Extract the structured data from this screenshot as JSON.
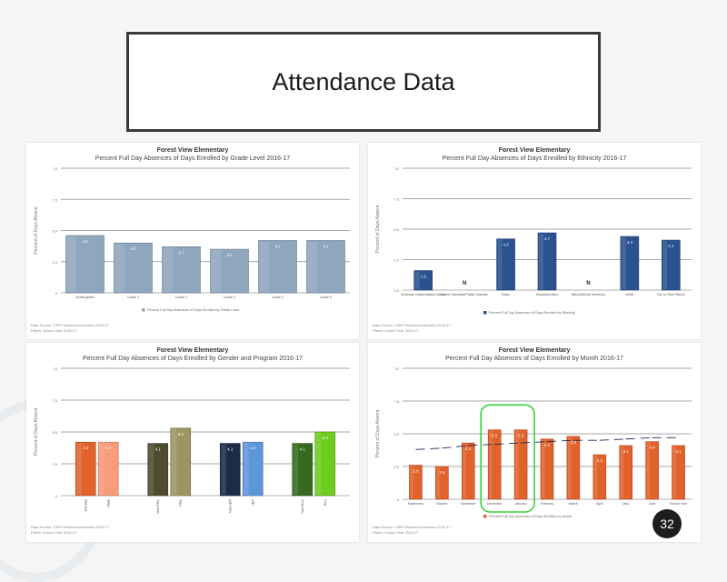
{
  "slide": {
    "title": "Attendance Data",
    "page_number": "32"
  },
  "chart_data": [
    {
      "type": "bar",
      "title": "Forest View Elementary",
      "subtitle": "Percent Full Day Absences of Days Enrolled by Grade Level 2016-17",
      "ylabel": "Percent of Days Absent",
      "ylim": [
        0,
        10
      ],
      "yticks": [
        "0",
        "2.5",
        "5.0",
        "7.5",
        "10"
      ],
      "categories": [
        "Kindergarten",
        "Grade 1",
        "Grade 2",
        "Grade 3",
        "Grade 4",
        "Grade 5"
      ],
      "values": [
        4.6,
        4.0,
        3.7,
        3.5,
        4.2,
        4.2
      ],
      "colors": [
        "#8ea6be"
      ],
      "legend": "Percent Full Day Absences of Days Enrolled by Grade Level"
    },
    {
      "type": "bar",
      "title": "Forest View Elementary",
      "subtitle": "Percent Full Day Absences of Days Enrolled by Ethnicity 2016-17",
      "ylabel": "Percent of Days Absent",
      "ylim": [
        0,
        10
      ],
      "yticks": [
        "0.0",
        "2.5",
        "5.0",
        "7.5",
        "10"
      ],
      "categories": [
        "American Indian/Alaska Native",
        "Native Hawaiian/Pacific Islander",
        "Asian",
        "Hispanic/Latino",
        "Black/African American",
        "White",
        "Two or More Races"
      ],
      "values": [
        1.6,
        null,
        4.2,
        4.7,
        null,
        4.4,
        4.1
      ],
      "labels": [
        "1.6",
        "N",
        "4.2",
        "4.7",
        "N",
        "4.4",
        "4.1"
      ],
      "colors": [
        "#2a5290"
      ],
      "legend": "Percent Full Day Absences of Days Enrolled by Ethnicity"
    },
    {
      "type": "bar",
      "title": "Forest View Elementary",
      "subtitle": "Percent Full Day Absences of Days Enrolled by Gender and Program 2016-17",
      "ylabel": "Percent of Days Absent",
      "ylim": [
        0,
        10
      ],
      "yticks": [
        "0",
        "2.5",
        "5.0",
        "7.5",
        "10"
      ],
      "categories": [
        "Female",
        "Male",
        "Non-FRL",
        "FRL",
        "Non-IEP",
        "IEP",
        "Non-ELL",
        "ELL"
      ],
      "values": [
        4.2,
        4.2,
        4.1,
        5.3,
        4.1,
        4.2,
        4.1,
        5.0
      ],
      "colors": [
        "#e2622c",
        "#f79b7a",
        "#4e4b2e",
        "#9d9463",
        "#1c2c48",
        "#5f96d9",
        "#336a1d",
        "#6fcc1e"
      ],
      "legend": "Percent Full Day Absences of Days Enrolled"
    },
    {
      "type": "bar",
      "title": "Forest View Elementary",
      "subtitle": "Percent Full Day Absences of Days Enrolled by Month 2016-17",
      "ylabel": "Percent of Days Absent",
      "ylim": [
        0,
        10
      ],
      "yticks": [
        "0",
        "2.5",
        "5.0",
        "7.5",
        "10"
      ],
      "categories": [
        "September",
        "October",
        "November",
        "December",
        "January",
        "February",
        "March",
        "April",
        "May",
        "June",
        "School Year"
      ],
      "values": [
        2.6,
        2.5,
        4.3,
        5.3,
        5.3,
        4.6,
        4.8,
        3.4,
        4.1,
        4.4,
        4.1
      ],
      "trend": [
        3.8,
        3.9,
        4.1,
        4.2,
        4.3,
        4.4,
        4.5,
        4.5,
        4.6,
        4.7,
        4.7
      ],
      "colors": [
        "#e2622c"
      ],
      "legend": "Percent Full Day Absences of Days Enrolled by Month",
      "highlight": [
        "December",
        "January"
      ],
      "highlight_color": "#37d33a"
    }
  ],
  "footnote": {
    "line1": "Data Source: OSPI Student Information 2016-17",
    "line2": "Filters: School Year 2016-17"
  }
}
